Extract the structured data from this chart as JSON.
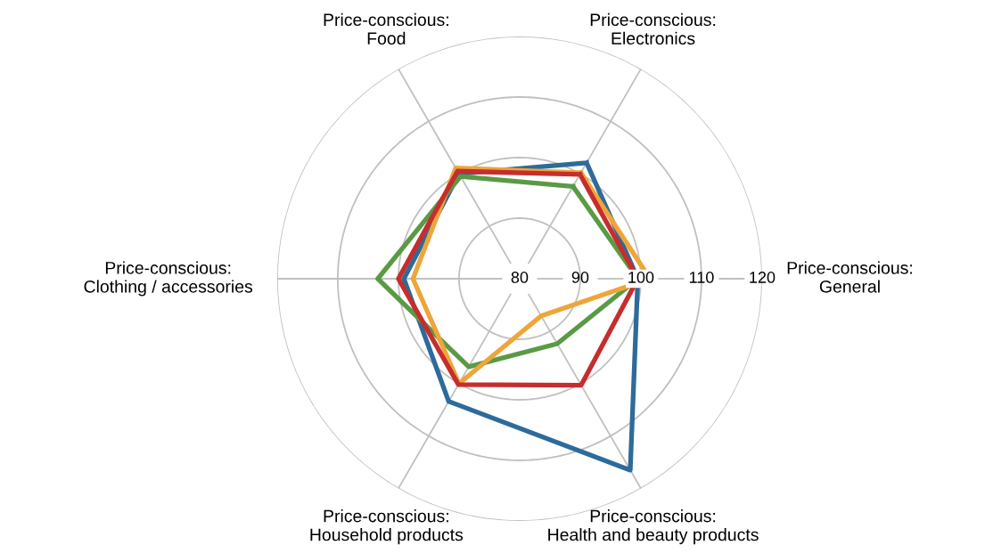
{
  "chart_data": {
    "type": "radar",
    "categories": [
      "Price-conscious:\nElectronics",
      "Price-conscious:\nGeneral",
      "Price-conscious:\nHealth and beauty products",
      "Price-conscious:\nHousehold products",
      "Price-conscious:\nClothing / accessories",
      "Price-conscious:\nFood"
    ],
    "ylim": [
      80,
      120
    ],
    "yticks": [
      80,
      90,
      100,
      110,
      120
    ],
    "grid": true,
    "legend": false,
    "series": [
      {
        "color": "#2e6b9a",
        "values": [
          102.1,
          99.5,
          116.5,
          103.4,
          99.1,
          100
        ]
      },
      {
        "color": "#5a9a45",
        "values": [
          97.6,
          99.5,
          92.4,
          96.8,
          103.4,
          99.5
        ]
      },
      {
        "color": "#eea53a",
        "values": [
          100.2,
          101.5,
          87.1,
          100,
          97.6,
          101.1
        ]
      },
      {
        "color": "#c62d2d",
        "values": [
          99.9,
          99.5,
          100.3,
          100.2,
          100,
          100.5
        ]
      }
    ]
  }
}
